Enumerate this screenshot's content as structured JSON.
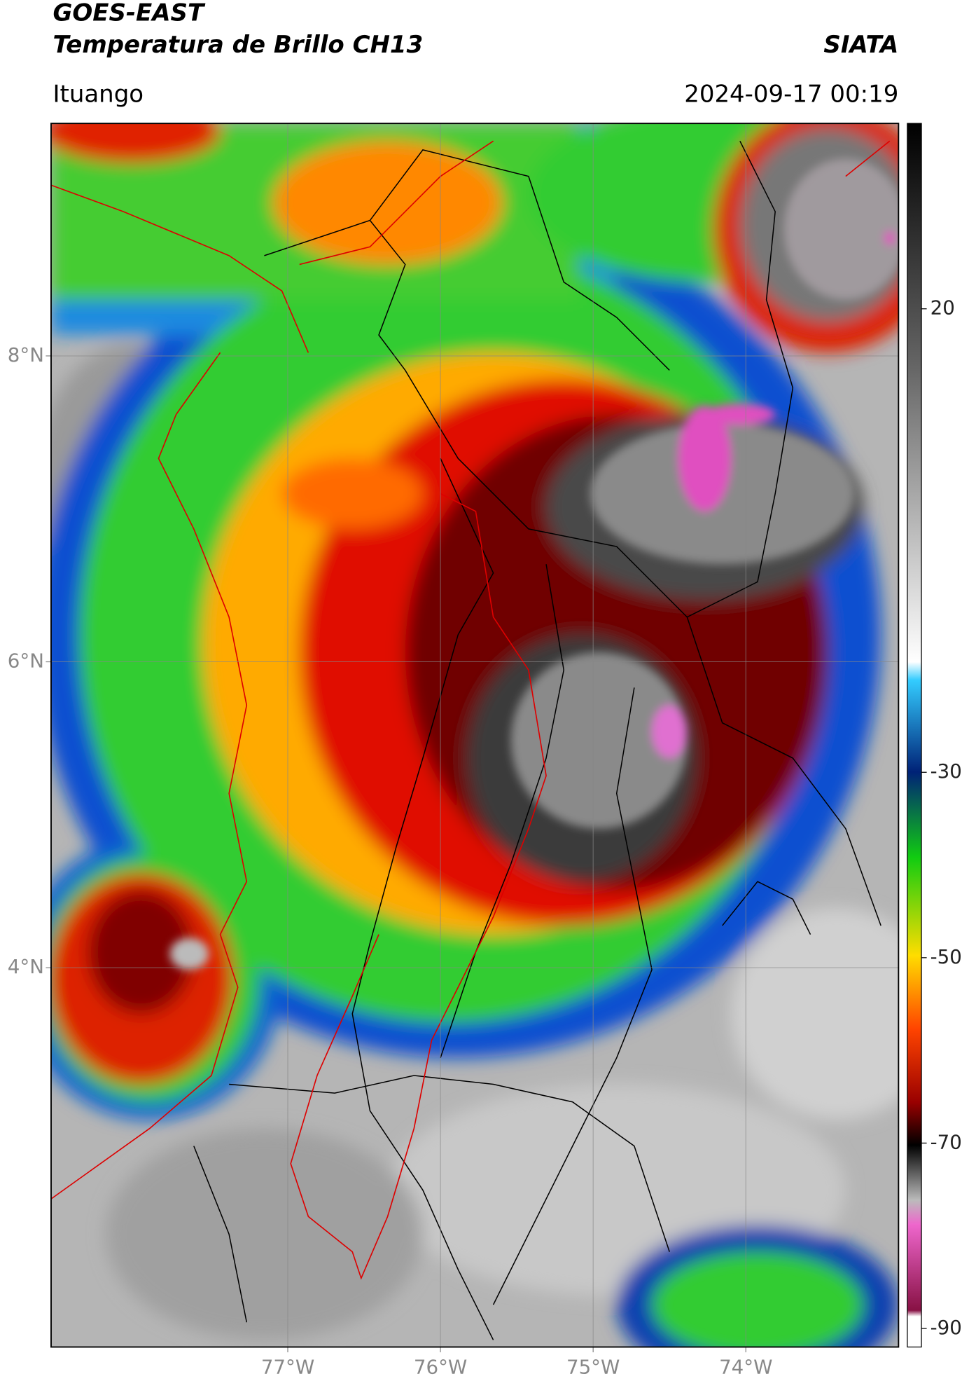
{
  "header": {
    "satellite": "GOES-EAST",
    "product": "Temperatura de Brillo CH13",
    "institution": "SIATA",
    "location": "Ituango",
    "timestamp": "2024-09-17 00:19"
  },
  "map": {
    "xlim": [
      -78.55,
      -73.0
    ],
    "ylim": [
      1.52,
      9.52
    ],
    "xticks": [
      {
        "value": -77,
        "label": "77°W"
      },
      {
        "value": -76,
        "label": "76°W"
      },
      {
        "value": -75,
        "label": "75°W"
      },
      {
        "value": -74,
        "label": "74°W"
      }
    ],
    "yticks": [
      {
        "value": 8,
        "label": "8°N"
      },
      {
        "value": 6,
        "label": "6°N"
      },
      {
        "value": 4,
        "label": "4°N"
      }
    ],
    "grid": true
  },
  "colorbar": {
    "lim": [
      -92,
      40
    ],
    "ticks": [
      20,
      -30,
      -50,
      -70,
      -90
    ]
  }
}
